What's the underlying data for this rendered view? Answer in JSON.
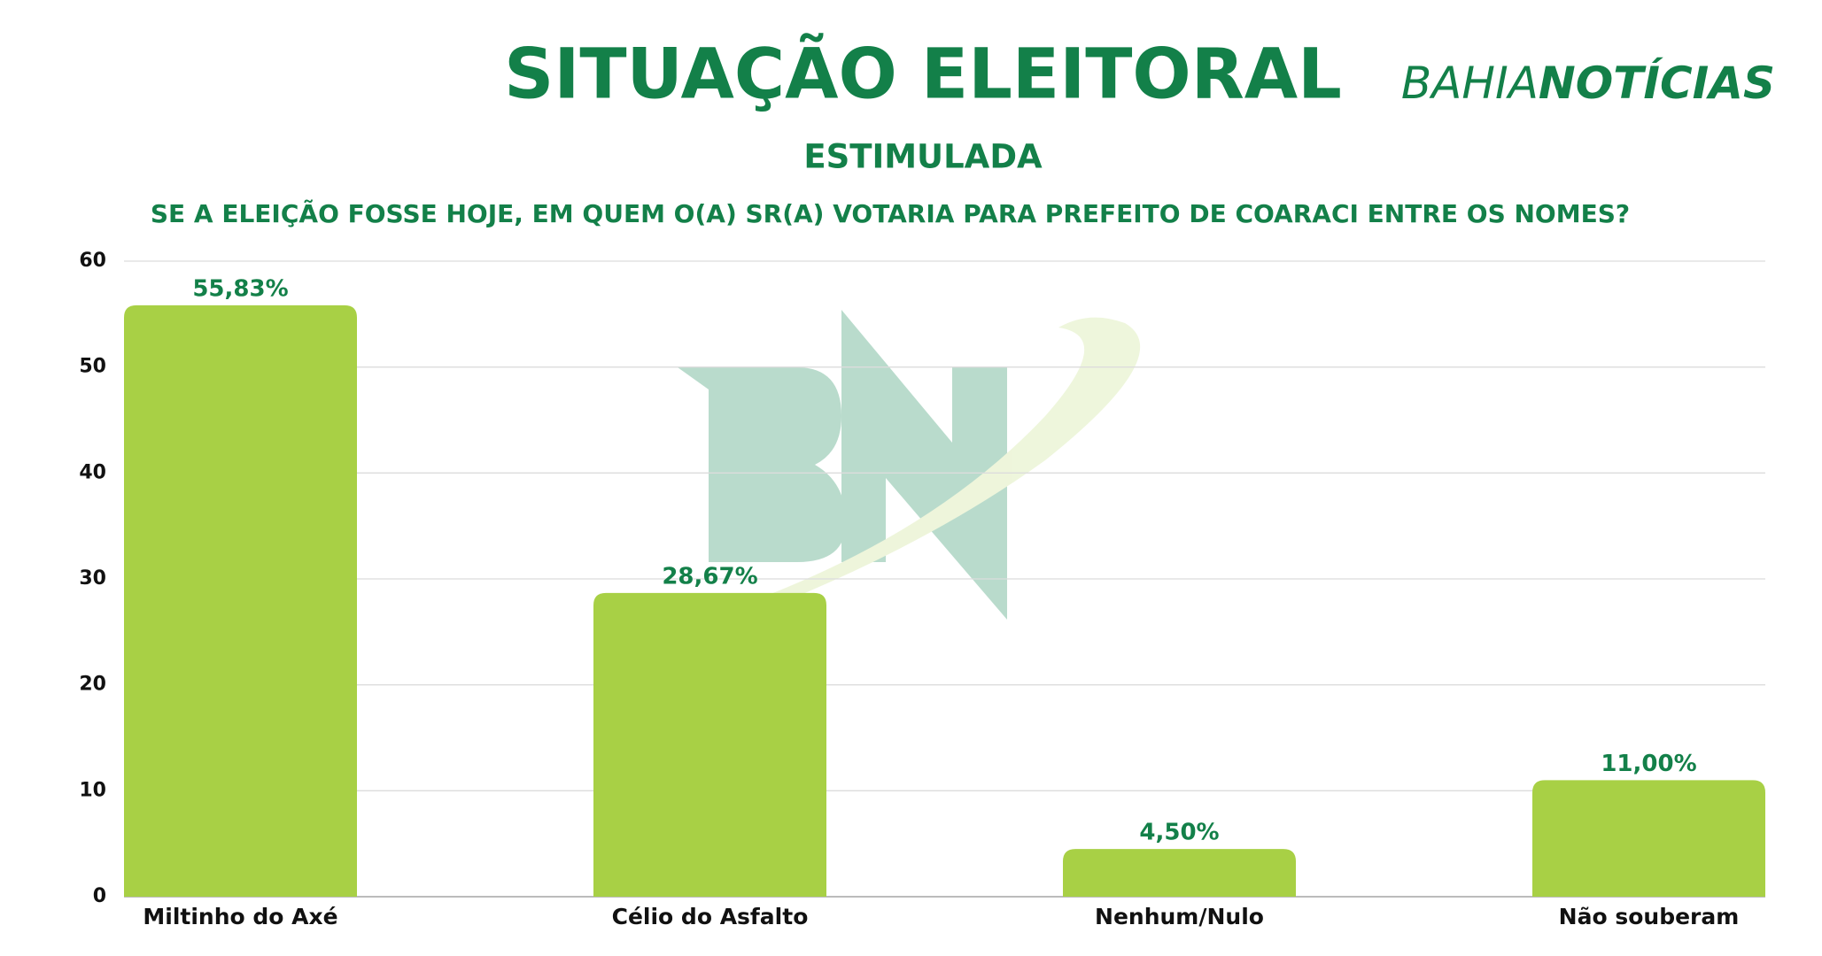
{
  "chart_data": {
    "type": "bar",
    "title": "SITUAÇÃO ELEITORAL",
    "subtitle": "ESTIMULADA",
    "question": "SE A ELEIÇÃO FOSSE HOJE, EM QUEM O(A) SR(A) VOTARIA PARA PREFEITO DE COARACI ENTRE OS NOMES?",
    "brand": [
      "BAHIA",
      "NOTÍCIAS"
    ],
    "categories": [
      "Miltinho do Axé",
      "Célio do Asfalto",
      "Nenhum/Nulo",
      "Não souberam"
    ],
    "values": [
      55.83,
      28.67,
      4.5,
      11.0
    ],
    "value_labels": [
      "55,83%",
      "28,67%",
      "4,50%",
      "11,00%"
    ],
    "color": "#a8d045",
    "ylim": [
      0,
      60
    ],
    "yticks": [
      0,
      10,
      20,
      30,
      40,
      50,
      60
    ],
    "grid": true
  }
}
